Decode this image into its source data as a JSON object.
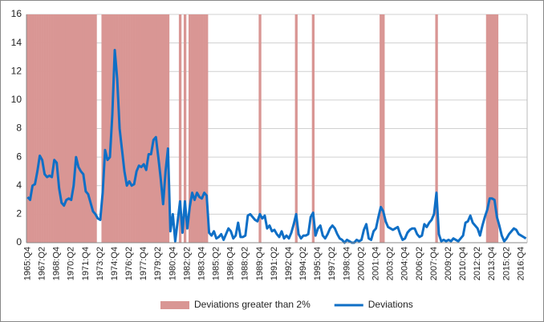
{
  "chart_data": {
    "type": "combo",
    "categories": [
      "1965:Q4",
      null,
      null,
      null,
      null,
      null,
      "1967:Q2",
      null,
      null,
      null,
      null,
      null,
      "1968:Q4",
      null,
      null,
      null,
      null,
      null,
      "1970:Q2",
      null,
      null,
      null,
      null,
      null,
      "1971:Q4",
      null,
      null,
      null,
      null,
      null,
      "1973:Q2",
      null,
      null,
      null,
      null,
      null,
      "1974:Q4",
      null,
      null,
      null,
      null,
      null,
      "1976:Q2",
      null,
      null,
      null,
      null,
      null,
      "1977:Q4",
      null,
      null,
      null,
      null,
      null,
      "1979:Q2",
      null,
      null,
      null,
      null,
      null,
      "1980:Q4",
      null,
      null,
      null,
      null,
      null,
      "1982:Q2",
      null,
      null,
      null,
      null,
      null,
      "1983:Q4",
      null,
      null,
      null,
      null,
      null,
      "1985:Q2",
      null,
      null,
      null,
      null,
      null,
      "1986:Q4",
      null,
      null,
      null,
      null,
      null,
      "1988:Q2",
      null,
      null,
      null,
      null,
      null,
      "1989:Q4",
      null,
      null,
      null,
      null,
      null,
      "1991:Q2",
      null,
      null,
      null,
      null,
      null,
      "1992:Q4",
      null,
      null,
      null,
      null,
      null,
      "1994:Q2",
      null,
      null,
      null,
      null,
      null,
      "1995:Q4",
      null,
      null,
      null,
      null,
      null,
      "1997:Q2",
      null,
      null,
      null,
      null,
      null,
      "1998:Q4",
      null,
      null,
      null,
      null,
      null,
      "2000:Q2",
      null,
      null,
      null,
      null,
      null,
      "2001:Q4",
      null,
      null,
      null,
      null,
      null,
      "2003:Q2",
      null,
      null,
      null,
      null,
      null,
      "2004:Q4",
      null,
      null,
      null,
      null,
      null,
      "2006:Q2",
      null,
      null,
      null,
      null,
      null,
      "2007:Q4",
      null,
      null,
      null,
      null,
      null,
      "2009:Q2",
      null,
      null,
      null,
      null,
      null,
      "2010:Q4",
      null,
      null,
      null,
      null,
      null,
      "2012:Q2",
      null,
      null,
      null,
      null,
      null,
      "2013:Q4",
      null,
      null,
      null,
      null,
      null,
      "2015:Q2",
      null,
      null,
      null,
      null,
      null,
      "2016:Q4",
      null,
      null
    ],
    "series": [
      {
        "name": "Deviations greater than 2%",
        "type": "bar",
        "color": "#d99694",
        "values": [
          16,
          16,
          16,
          16,
          16,
          16,
          16,
          16,
          16,
          16,
          16,
          16,
          16,
          16,
          16,
          16,
          16,
          16,
          16,
          16,
          16,
          16,
          16,
          16,
          16,
          16,
          16,
          16,
          16,
          0,
          0,
          16,
          16,
          16,
          16,
          16,
          16,
          16,
          16,
          16,
          16,
          16,
          16,
          16,
          16,
          16,
          16,
          16,
          16,
          16,
          16,
          16,
          16,
          16,
          16,
          16,
          16,
          16,
          16,
          0,
          0,
          0,
          0,
          16,
          0,
          16,
          0,
          16,
          16,
          16,
          16,
          16,
          16,
          16,
          16,
          0,
          0,
          0,
          0,
          0,
          0,
          0,
          0,
          0,
          0,
          0,
          0,
          0,
          0,
          0,
          0,
          0,
          0,
          0,
          0,
          0,
          16,
          0,
          0,
          0,
          0,
          0,
          0,
          0,
          0,
          0,
          0,
          0,
          0,
          0,
          0,
          16,
          0,
          0,
          0,
          0,
          0,
          0,
          16,
          0,
          0,
          0,
          0,
          0,
          0,
          0,
          0,
          0,
          0,
          0,
          0,
          0,
          0,
          0,
          0,
          0,
          0,
          0,
          0,
          0,
          0,
          0,
          0,
          0,
          0,
          0,
          16,
          16,
          0,
          0,
          0,
          0,
          0,
          0,
          0,
          0,
          0,
          0,
          0,
          0,
          0,
          0,
          0,
          0,
          0,
          0,
          0,
          0,
          0,
          16,
          0,
          0,
          0,
          0,
          0,
          0,
          0,
          0,
          0,
          0,
          0,
          0,
          0,
          0,
          0,
          0,
          0,
          0,
          0,
          0,
          16,
          16,
          16,
          16,
          16,
          0,
          0,
          0,
          0,
          0,
          0,
          0,
          0,
          0,
          0,
          0,
          0
        ]
      },
      {
        "name": "Deviations",
        "type": "line",
        "color": "#0f6fc6",
        "values": [
          3.2,
          3.0,
          4.0,
          4.1,
          5.0,
          6.1,
          5.8,
          4.8,
          4.6,
          4.7,
          4.6,
          5.8,
          5.6,
          3.8,
          2.8,
          2.6,
          3.0,
          3.1,
          3.0,
          4.0,
          6.0,
          5.3,
          5.0,
          4.8,
          3.6,
          3.4,
          2.8,
          2.2,
          2.0,
          1.7,
          1.6,
          3.5,
          6.5,
          5.8,
          6.0,
          9.0,
          13.5,
          11.5,
          8.0,
          6.5,
          5.0,
          4.0,
          4.3,
          4.0,
          4.1,
          5.0,
          5.4,
          5.3,
          5.5,
          5.1,
          6.2,
          6.2,
          7.2,
          7.4,
          6.0,
          4.5,
          2.7,
          5.0,
          6.6,
          0.8,
          2.0,
          0.1,
          1.5,
          2.9,
          0.7,
          2.9,
          1.0,
          2.5,
          3.5,
          3.0,
          3.5,
          3.2,
          3.1,
          3.5,
          3.3,
          0.7,
          0.5,
          0.8,
          0.3,
          0.4,
          0.6,
          0.2,
          0.6,
          1.0,
          0.8,
          0.3,
          0.5,
          1.4,
          0.4,
          0.4,
          0.5,
          1.9,
          2.0,
          1.8,
          1.6,
          1.5,
          2.0,
          1.7,
          1.9,
          1.0,
          1.2,
          0.8,
          0.9,
          0.6,
          0.4,
          0.8,
          0.3,
          0.5,
          0.3,
          0.7,
          1.3,
          2.0,
          0.6,
          0.3,
          0.5,
          0.5,
          0.6,
          1.8,
          2.1,
          0.5,
          1.0,
          1.2,
          0.5,
          0.3,
          0.6,
          1.0,
          1.2,
          1.0,
          0.6,
          0.3,
          0.2,
          0.0,
          0.2,
          0.1,
          0.0,
          0.0,
          0.2,
          0.1,
          0.2,
          0.9,
          1.3,
          0.3,
          0.2,
          0.8,
          1.0,
          1.8,
          2.5,
          2.2,
          1.5,
          1.1,
          1.0,
          0.9,
          1.0,
          1.1,
          0.6,
          0.2,
          0.3,
          0.7,
          0.9,
          1.0,
          1.0,
          0.6,
          0.4,
          0.5,
          1.3,
          1.1,
          1.4,
          1.6,
          2.0,
          3.5,
          0.6,
          0.1,
          0.2,
          0.1,
          0.2,
          0.1,
          0.3,
          0.2,
          0.1,
          0.3,
          0.5,
          1.4,
          1.5,
          1.9,
          1.4,
          1.2,
          1.0,
          0.5,
          1.2,
          1.8,
          2.3,
          3.1,
          3.1,
          3.0,
          1.8,
          1.2,
          0.5,
          0.1,
          0.3,
          0.6,
          0.8,
          1.0,
          0.9,
          0.6,
          0.5,
          0.4,
          0.3
        ]
      }
    ],
    "ylim": [
      0,
      16
    ],
    "yticks": [
      0,
      2,
      4,
      6,
      8,
      10,
      12,
      14,
      16
    ],
    "grid": true,
    "legend": "bottom"
  }
}
